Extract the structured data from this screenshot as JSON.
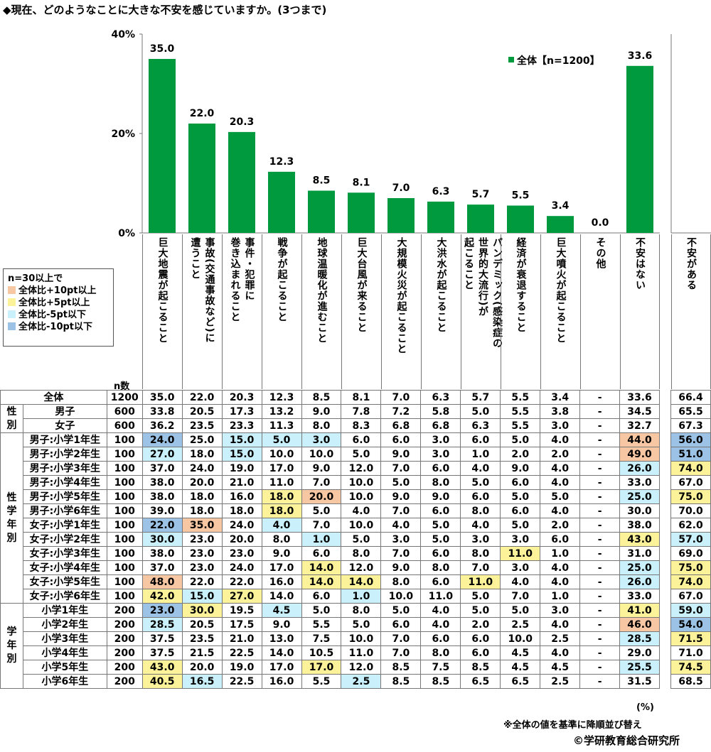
{
  "title": "◆現在、どのようなことに大きな不安を感じていますか。(3つまで)",
  "chart_data": {
    "type": "bar",
    "categories": [
      "巨大地震が起こること",
      "事故(交通事故など)に遭うこと",
      "事件・犯罪に巻き込まれること",
      "戦争が起こること",
      "地球温暖化が進むこと",
      "巨大台風が来ること",
      "大規模火災が起こること",
      "大洪水が起こること",
      "パンデミック(感染症の世界的大流行)が起こること",
      "経済が衰退すること",
      "巨大噴火が起こること",
      "その他",
      "不安はない"
    ],
    "series": [
      {
        "name": "全体【n=1200】",
        "values": [
          35.0,
          22.0,
          20.3,
          12.3,
          8.5,
          8.1,
          7.0,
          6.3,
          5.7,
          5.5,
          3.4,
          0.0,
          33.6
        ]
      }
    ],
    "y_ticks": [
      "40%",
      "20%",
      "0%"
    ],
    "ylim": [
      0,
      40
    ],
    "bar_color": "#009a3e",
    "legend_position": "top-right"
  },
  "category_labels": [
    {
      "lines": [
        "巨大地震が起こること"
      ]
    },
    {
      "lines": [
        "事故(交通事故など)に",
        "遭うこと"
      ]
    },
    {
      "lines": [
        "事件・犯罪に",
        "巻き込まれること"
      ]
    },
    {
      "lines": [
        "戦争が起こること"
      ]
    },
    {
      "lines": [
        "地球温暖化が進むこと"
      ]
    },
    {
      "lines": [
        "巨大台風が来ること"
      ]
    },
    {
      "lines": [
        "大規模火災が起こること"
      ]
    },
    {
      "lines": [
        "大洪水が起こること"
      ]
    },
    {
      "lines": [
        "パンデミック(感染症の",
        "世界的大流行)が",
        "起こること"
      ]
    },
    {
      "lines": [
        "経済が衰退すること"
      ]
    },
    {
      "lines": [
        "巨大噴火が起こること"
      ]
    },
    {
      "lines": [
        "その他"
      ]
    },
    {
      "lines": [
        "不安はない"
      ]
    },
    {
      "lines": [
        "不安がある"
      ]
    }
  ],
  "legend": {
    "header": "n=30以上で",
    "items": [
      {
        "label": "全体比+10pt以上",
        "color": "#f7c6a3"
      },
      {
        "label": "全体比+5pt以上",
        "color": "#fbf29a"
      },
      {
        "label": "全体比-5pt以下",
        "color": "#c9f0fb"
      },
      {
        "label": "全体比-10pt以下",
        "color": "#9cc3e6"
      }
    ]
  },
  "table": {
    "n_header": "n数",
    "highlight_codes": {
      "o": "全体比+10pt以上",
      "y": "全体比+5pt以上",
      "c": "全体比-5pt以下",
      "b": "全体比-10pt以下"
    },
    "groups": [
      {
        "label": "",
        "rows": [
          {
            "label": "全体",
            "n": "1200",
            "values": [
              "35.0",
              "22.0",
              "20.3",
              "12.3",
              "8.5",
              "8.1",
              "7.0",
              "6.3",
              "5.7",
              "5.5",
              "3.4",
              "-",
              "33.6",
              "66.4"
            ],
            "hl": [
              "",
              "",
              "",
              "",
              "",
              "",
              "",
              "",
              "",
              "",
              "",
              "",
              "",
              ""
            ]
          }
        ]
      },
      {
        "label": "性別",
        "rows": [
          {
            "label": "男子",
            "n": "600",
            "values": [
              "33.8",
              "20.5",
              "17.3",
              "13.2",
              "9.0",
              "7.8",
              "7.2",
              "5.8",
              "5.0",
              "5.5",
              "3.8",
              "-",
              "34.5",
              "65.5"
            ],
            "hl": [
              "",
              "",
              "",
              "",
              "",
              "",
              "",
              "",
              "",
              "",
              "",
              "",
              "",
              ""
            ]
          },
          {
            "label": "女子",
            "n": "600",
            "values": [
              "36.2",
              "23.5",
              "23.3",
              "11.3",
              "8.0",
              "8.3",
              "6.8",
              "6.8",
              "6.3",
              "5.5",
              "3.0",
              "-",
              "32.7",
              "67.3"
            ],
            "hl": [
              "",
              "",
              "",
              "",
              "",
              "",
              "",
              "",
              "",
              "",
              "",
              "",
              "",
              ""
            ]
          }
        ]
      },
      {
        "label": "性学年別",
        "rows": [
          {
            "label": "男子:小学1年生",
            "n": "100",
            "values": [
              "24.0",
              "25.0",
              "15.0",
              "5.0",
              "3.0",
              "6.0",
              "6.0",
              "3.0",
              "6.0",
              "5.0",
              "4.0",
              "-",
              "44.0",
              "56.0"
            ],
            "hl": [
              "b",
              "",
              "c",
              "c",
              "c",
              "",
              "",
              "",
              "",
              "",
              "",
              "",
              "o",
              "b"
            ]
          },
          {
            "label": "男子:小学2年生",
            "n": "100",
            "values": [
              "27.0",
              "18.0",
              "15.0",
              "10.0",
              "10.0",
              "5.0",
              "9.0",
              "3.0",
              "1.0",
              "2.0",
              "2.0",
              "-",
              "49.0",
              "51.0"
            ],
            "hl": [
              "c",
              "",
              "c",
              "",
              "",
              "",
              "",
              "",
              "",
              "",
              "",
              "",
              "o",
              "b"
            ]
          },
          {
            "label": "男子:小学3年生",
            "n": "100",
            "values": [
              "37.0",
              "24.0",
              "19.0",
              "17.0",
              "9.0",
              "12.0",
              "7.0",
              "6.0",
              "4.0",
              "9.0",
              "4.0",
              "-",
              "26.0",
              "74.0"
            ],
            "hl": [
              "",
              "",
              "",
              "",
              "",
              "",
              "",
              "",
              "",
              "",
              "",
              "",
              "c",
              "y"
            ]
          },
          {
            "label": "男子:小学4年生",
            "n": "100",
            "values": [
              "38.0",
              "20.0",
              "21.0",
              "11.0",
              "7.0",
              "10.0",
              "5.0",
              "8.0",
              "5.0",
              "6.0",
              "4.0",
              "-",
              "33.0",
              "67.0"
            ],
            "hl": [
              "",
              "",
              "",
              "",
              "",
              "",
              "",
              "",
              "",
              "",
              "",
              "",
              "",
              ""
            ]
          },
          {
            "label": "男子:小学5年生",
            "n": "100",
            "values": [
              "38.0",
              "18.0",
              "16.0",
              "18.0",
              "20.0",
              "10.0",
              "9.0",
              "9.0",
              "6.0",
              "5.0",
              "5.0",
              "-",
              "25.0",
              "75.0"
            ],
            "hl": [
              "",
              "",
              "",
              "y",
              "o",
              "",
              "",
              "",
              "",
              "",
              "",
              "",
              "c",
              "y"
            ]
          },
          {
            "label": "男子:小学6年生",
            "n": "100",
            "values": [
              "39.0",
              "18.0",
              "18.0",
              "18.0",
              "5.0",
              "4.0",
              "7.0",
              "6.0",
              "8.0",
              "6.0",
              "4.0",
              "-",
              "30.0",
              "70.0"
            ],
            "hl": [
              "",
              "",
              "",
              "y",
              "",
              "",
              "",
              "",
              "",
              "",
              "",
              "",
              "",
              ""
            ]
          },
          {
            "label": "女子:小学1年生",
            "n": "100",
            "values": [
              "22.0",
              "35.0",
              "24.0",
              "4.0",
              "7.0",
              "10.0",
              "4.0",
              "5.0",
              "4.0",
              "5.0",
              "2.0",
              "-",
              "38.0",
              "62.0"
            ],
            "hl": [
              "b",
              "o",
              "",
              "c",
              "",
              "",
              "",
              "",
              "",
              "",
              "",
              "",
              "",
              ""
            ]
          },
          {
            "label": "女子:小学2年生",
            "n": "100",
            "values": [
              "30.0",
              "23.0",
              "20.0",
              "8.0",
              "1.0",
              "5.0",
              "3.0",
              "5.0",
              "3.0",
              "3.0",
              "6.0",
              "-",
              "43.0",
              "57.0"
            ],
            "hl": [
              "c",
              "",
              "",
              "",
              "c",
              "",
              "",
              "",
              "",
              "",
              "",
              "",
              "y",
              "c"
            ]
          },
          {
            "label": "女子:小学3年生",
            "n": "100",
            "values": [
              "38.0",
              "23.0",
              "23.0",
              "9.0",
              "6.0",
              "8.0",
              "7.0",
              "6.0",
              "8.0",
              "11.0",
              "1.0",
              "-",
              "31.0",
              "69.0"
            ],
            "hl": [
              "",
              "",
              "",
              "",
              "",
              "",
              "",
              "",
              "",
              "y",
              "",
              "",
              "",
              ""
            ]
          },
          {
            "label": "女子:小学4年生",
            "n": "100",
            "values": [
              "37.0",
              "23.0",
              "24.0",
              "17.0",
              "14.0",
              "12.0",
              "9.0",
              "8.0",
              "7.0",
              "3.0",
              "4.0",
              "-",
              "25.0",
              "75.0"
            ],
            "hl": [
              "",
              "",
              "",
              "",
              "y",
              "",
              "",
              "",
              "",
              "",
              "",
              "",
              "c",
              "y"
            ]
          },
          {
            "label": "女子:小学5年生",
            "n": "100",
            "values": [
              "48.0",
              "22.0",
              "22.0",
              "16.0",
              "14.0",
              "14.0",
              "8.0",
              "6.0",
              "11.0",
              "4.0",
              "4.0",
              "-",
              "26.0",
              "74.0"
            ],
            "hl": [
              "o",
              "",
              "",
              "",
              "y",
              "y",
              "",
              "",
              "y",
              "",
              "",
              "",
              "c",
              "y"
            ]
          },
          {
            "label": "女子:小学6年生",
            "n": "100",
            "values": [
              "42.0",
              "15.0",
              "27.0",
              "14.0",
              "6.0",
              "1.0",
              "10.0",
              "11.0",
              "5.0",
              "7.0",
              "1.0",
              "-",
              "33.0",
              "67.0"
            ],
            "hl": [
              "y",
              "c",
              "y",
              "",
              "",
              "c",
              "",
              "",
              "",
              "",
              "",
              "",
              "",
              ""
            ]
          }
        ]
      },
      {
        "label": "学年別",
        "rows": [
          {
            "label": "小学1年生",
            "n": "200",
            "values": [
              "23.0",
              "30.0",
              "19.5",
              "4.5",
              "5.0",
              "8.0",
              "5.0",
              "4.0",
              "5.0",
              "5.0",
              "3.0",
              "-",
              "41.0",
              "59.0"
            ],
            "hl": [
              "b",
              "y",
              "",
              "c",
              "",
              "",
              "",
              "",
              "",
              "",
              "",
              "",
              "y",
              "c"
            ]
          },
          {
            "label": "小学2年生",
            "n": "200",
            "values": [
              "28.5",
              "20.5",
              "17.5",
              "9.0",
              "5.5",
              "5.0",
              "6.0",
              "4.0",
              "2.0",
              "2.5",
              "4.0",
              "-",
              "46.0",
              "54.0"
            ],
            "hl": [
              "c",
              "",
              "",
              "",
              "",
              "",
              "",
              "",
              "",
              "",
              "",
              "",
              "o",
              "b"
            ]
          },
          {
            "label": "小学3年生",
            "n": "200",
            "values": [
              "37.5",
              "23.5",
              "21.0",
              "13.0",
              "7.5",
              "10.0",
              "7.0",
              "6.0",
              "6.0",
              "10.0",
              "2.5",
              "-",
              "28.5",
              "71.5"
            ],
            "hl": [
              "",
              "",
              "",
              "",
              "",
              "",
              "",
              "",
              "",
              "",
              "",
              "",
              "c",
              "y"
            ]
          },
          {
            "label": "小学4年生",
            "n": "200",
            "values": [
              "37.5",
              "21.5",
              "22.5",
              "14.0",
              "10.5",
              "11.0",
              "7.0",
              "8.0",
              "6.0",
              "4.5",
              "4.0",
              "-",
              "29.0",
              "71.0"
            ],
            "hl": [
              "",
              "",
              "",
              "",
              "",
              "",
              "",
              "",
              "",
              "",
              "",
              "",
              "",
              ""
            ]
          },
          {
            "label": "小学5年生",
            "n": "200",
            "values": [
              "43.0",
              "20.0",
              "19.0",
              "17.0",
              "17.0",
              "12.0",
              "8.5",
              "7.5",
              "8.5",
              "4.5",
              "4.5",
              "-",
              "25.5",
              "74.5"
            ],
            "hl": [
              "y",
              "",
              "",
              "",
              "y",
              "",
              "",
              "",
              "",
              "",
              "",
              "",
              "c",
              "y"
            ]
          },
          {
            "label": "小学6年生",
            "n": "200",
            "values": [
              "40.5",
              "16.5",
              "22.5",
              "16.0",
              "5.5",
              "2.5",
              "8.5",
              "8.5",
              "6.5",
              "6.5",
              "2.5",
              "-",
              "31.5",
              "68.5"
            ],
            "hl": [
              "y",
              "c",
              "",
              "",
              "",
              "c",
              "",
              "",
              "",
              "",
              "",
              "",
              "",
              ""
            ]
          }
        ]
      }
    ]
  },
  "unit": "(%)",
  "note": "※全体の値を基準に降順並び替え",
  "credit": "©学研教育総合研究所"
}
